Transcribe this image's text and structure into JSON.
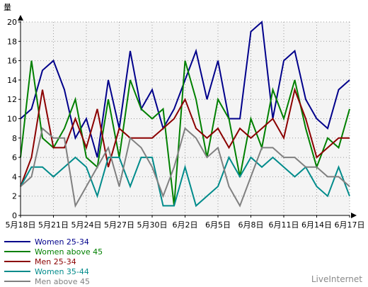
{
  "chart_data": {
    "type": "line",
    "ylabel": "量",
    "ylim": [
      0,
      20
    ],
    "yticks": [
      0,
      2,
      4,
      6,
      8,
      10,
      12,
      14,
      16,
      18,
      20
    ],
    "x": [
      "5月18日",
      "5月19日",
      "5月20日",
      "5月21日",
      "5月22日",
      "5月23日",
      "5月24日",
      "5月25日",
      "5月26日",
      "5月27日",
      "5月28日",
      "5月29日",
      "5月30日",
      "5月31日",
      "6月1日",
      "6月2日",
      "6月3日",
      "6月4日",
      "6月5日",
      "6月6日",
      "6月7日",
      "6月8日",
      "6月9日",
      "6月10日",
      "6月11日",
      "6月12日",
      "6月13日",
      "6月14日",
      "6月15日",
      "6月16日",
      "6月17日"
    ],
    "xtick_labels": [
      "5月18日",
      "5月21日",
      "5月24日",
      "5月27日",
      "5月30日",
      "6月2日",
      "6月5日",
      "6月8日",
      "6月11日",
      "6月14日",
      "6月17日"
    ],
    "grid": true,
    "legend_position": "bottom-left",
    "series": [
      {
        "name": "Women 25-34",
        "color": "#00008b",
        "values": [
          10,
          11,
          15,
          16,
          13,
          8,
          10,
          6,
          14,
          9,
          17,
          11,
          13,
          9,
          11,
          14,
          17,
          12,
          16,
          10,
          10,
          19,
          20,
          10,
          16,
          17,
          12,
          10,
          9,
          13,
          14
        ]
      },
      {
        "name": "Women above 45",
        "color": "#008000",
        "values": [
          6,
          16,
          8,
          7,
          9,
          12,
          6,
          5,
          12,
          6,
          14,
          11,
          10,
          11,
          1,
          16,
          12,
          6,
          12,
          10,
          4,
          10,
          7,
          13,
          10,
          14,
          9,
          5,
          8,
          7,
          11
        ]
      },
      {
        "name": "Men 25-34",
        "color": "#8b0000",
        "values": [
          3,
          6,
          13,
          7,
          7,
          10,
          7,
          11,
          5,
          9,
          8,
          8,
          8,
          9,
          10,
          12,
          9,
          8,
          9,
          7,
          9,
          8,
          9,
          10,
          8,
          13,
          10,
          6,
          7,
          8,
          8
        ]
      },
      {
        "name": "Women 35-44",
        "color": "#008b8b",
        "values": [
          3,
          5,
          5,
          4,
          5,
          6,
          5,
          2,
          6,
          6,
          3,
          6,
          6,
          1,
          1,
          5,
          1,
          2,
          3,
          6,
          4,
          6,
          5,
          6,
          5,
          4,
          5,
          3,
          2,
          5,
          2
        ]
      },
      {
        "name": "Men above 45",
        "color": "#808080",
        "values": [
          3,
          4,
          9,
          8,
          8,
          1,
          3,
          5,
          7,
          3,
          8,
          7,
          5,
          2,
          5,
          9,
          8,
          6,
          7,
          3,
          1,
          4,
          7,
          7,
          6,
          6,
          5,
          5,
          4,
          4,
          3
        ]
      }
    ]
  },
  "watermark": "LiveInternet"
}
